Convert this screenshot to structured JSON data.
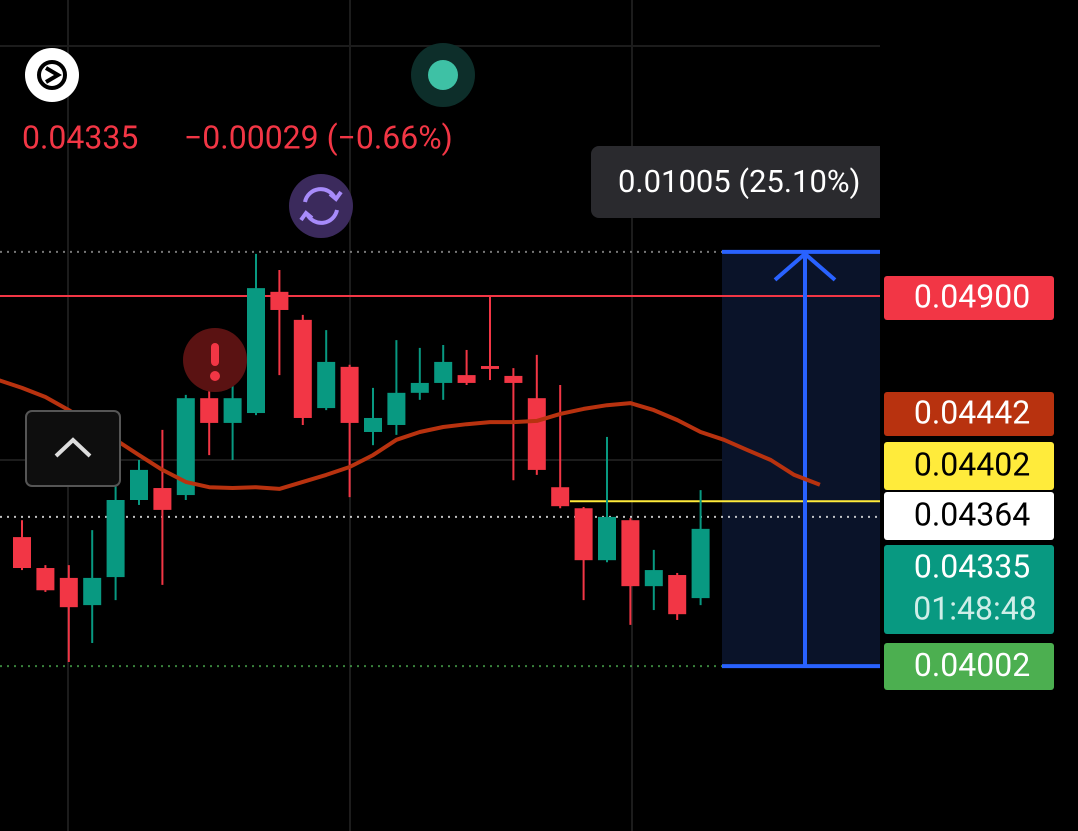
{
  "chart_data": {
    "type": "candlestick",
    "header": {
      "last": "0.04335",
      "change": "−0.00029 (−0.66%)"
    },
    "ylim": [
      0.03602,
      0.05618
    ],
    "up_color": "#089981",
    "down_color": "#f23645",
    "candles": {
      "open": [
        0.04315,
        0.0424,
        0.04216,
        0.0415,
        0.04218,
        0.04405,
        0.04434,
        0.04417,
        0.04652,
        0.04592,
        0.04616,
        0.0491,
        0.04842,
        0.04628,
        0.04728,
        0.0457,
        0.04587,
        0.04665,
        0.04689,
        0.04708,
        0.0473,
        0.04706,
        0.04652,
        0.04436,
        0.04385,
        0.04259,
        0.04356,
        0.04196,
        0.04223,
        0.04167
      ],
      "high": [
        0.04356,
        0.04247,
        0.04247,
        0.04332,
        0.04453,
        0.04502,
        0.04575,
        0.0466,
        0.04677,
        0.04684,
        0.05002,
        0.04963,
        0.04854,
        0.04817,
        0.04733,
        0.04677,
        0.04793,
        0.04774,
        0.04781,
        0.04769,
        0.049,
        0.04725,
        0.04757,
        0.04684,
        0.04388,
        0.04558,
        0.04361,
        0.04284,
        0.04228,
        0.04429
      ],
      "low": [
        0.04235,
        0.04182,
        0.04012,
        0.04058,
        0.04162,
        0.04393,
        0.04199,
        0.04405,
        0.04514,
        0.04502,
        0.04611,
        0.04708,
        0.04587,
        0.04623,
        0.04412,
        0.04538,
        0.04563,
        0.04648,
        0.04648,
        0.04684,
        0.04696,
        0.04453,
        0.04466,
        0.04385,
        0.04162,
        0.04254,
        0.04102,
        0.04138,
        0.04114,
        0.0415
      ],
      "close": [
        0.0424,
        0.04186,
        0.04145,
        0.04216,
        0.04405,
        0.04478,
        0.04381,
        0.04652,
        0.04592,
        0.04652,
        0.04919,
        0.04866,
        0.04604,
        0.0474,
        0.04592,
        0.04604,
        0.04665,
        0.04689,
        0.0474,
        0.04689,
        0.04723,
        0.04689,
        0.04478,
        0.0439,
        0.04259,
        0.04364,
        0.04196,
        0.04235,
        0.04128,
        0.04335
      ]
    },
    "ma": {
      "color": "#b8320f",
      "x": [
        -1,
        0,
        1,
        2,
        3,
        4,
        5,
        6,
        7,
        8,
        9,
        10,
        11,
        12,
        13,
        14,
        15,
        16,
        17,
        18,
        19,
        20,
        21,
        22,
        23,
        24,
        25,
        26,
        27,
        28,
        29,
        30,
        31,
        32,
        33,
        34.1
      ],
      "values": [
        0.04696,
        0.04677,
        0.04655,
        0.04623,
        0.04587,
        0.04551,
        0.04514,
        0.04478,
        0.04449,
        0.04436,
        0.04434,
        0.04436,
        0.04432,
        0.04449,
        0.04466,
        0.04485,
        0.04514,
        0.04551,
        0.0457,
        0.04582,
        0.04589,
        0.04594,
        0.04594,
        0.04597,
        0.04614,
        0.04626,
        0.04635,
        0.0464,
        0.04623,
        0.04599,
        0.0457,
        0.04551,
        0.04526,
        0.04502,
        0.04466,
        0.04442
      ]
    },
    "levels": [
      {
        "value": 0.049,
        "label": "0.04900",
        "color": "#f23645",
        "text_color": "#ffffff",
        "line": "solid"
      },
      {
        "value": 0.04442,
        "label": "0.04442",
        "color": "#b8320f",
        "text_color": "#ffffff",
        "line": "none"
      },
      {
        "value": 0.04402,
        "label": "0.04402",
        "color": "#ffeb3b",
        "text_color": "#000000",
        "line": "solid-right"
      },
      {
        "value": 0.04364,
        "label": "0.04364",
        "color": "#ffffff",
        "text_color": "#000000",
        "line": "dotted"
      },
      {
        "value": 0.04335,
        "label": "0.04335",
        "color": "#089981",
        "text_color": "#ffffff",
        "line": "none"
      },
      {
        "value": 0.04002,
        "label": "0.04002",
        "color": "#4caf50",
        "text_color": "#ffffff",
        "line": "dotted"
      }
    ],
    "countdown": "01:48:48",
    "measure": {
      "low": 0.04002,
      "high": 0.05007,
      "label": "0.01005 (25.10%)",
      "color": "#2962ff"
    }
  }
}
